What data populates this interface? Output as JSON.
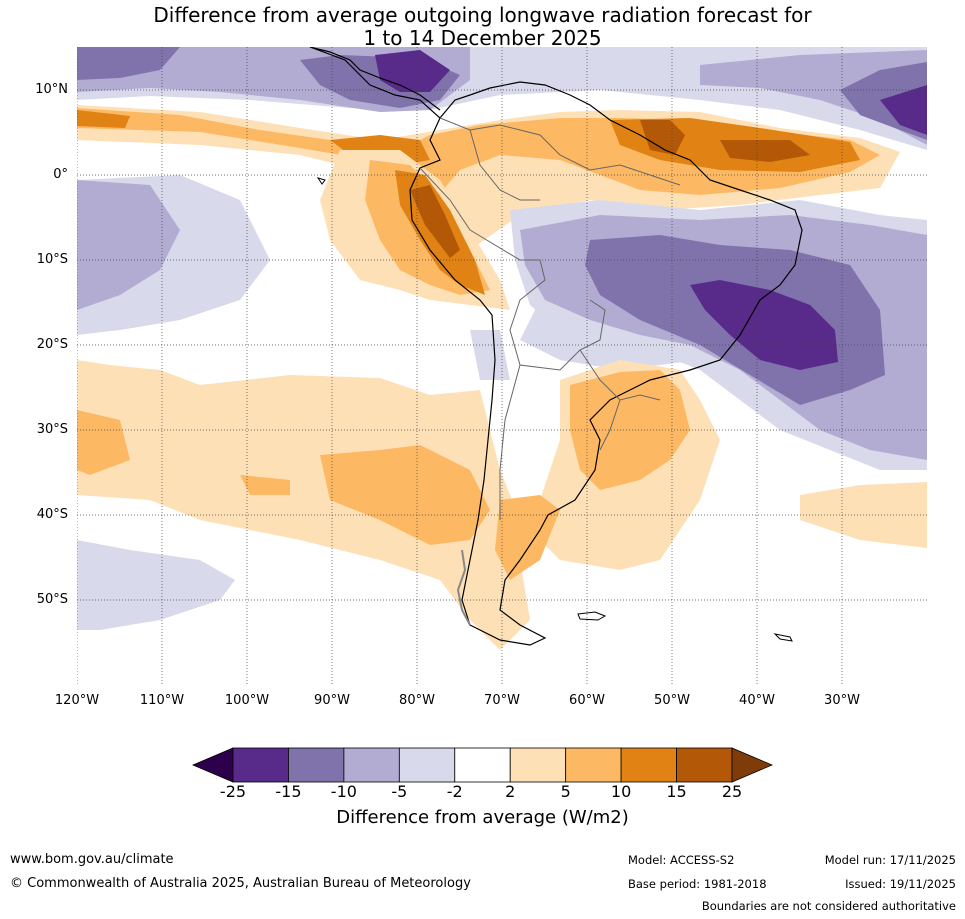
{
  "title_line1": "Difference from average outgoing longwave radiation forecast for",
  "title_line2": "1 to 14 December 2025",
  "map": {
    "lat_labels": [
      "10°N",
      "0°",
      "10°S",
      "20°S",
      "30°S",
      "40°S",
      "50°S"
    ],
    "lon_labels": [
      "120°W",
      "110°W",
      "100°W",
      "90°W",
      "80°W",
      "70°W",
      "60°W",
      "50°W",
      "40°W",
      "30°W"
    ]
  },
  "colorbar": {
    "ticks": [
      "-25",
      "-15",
      "-10",
      "-5",
      "-2",
      "2",
      "5",
      "10",
      "15",
      "25"
    ],
    "colors": [
      "#582b8b",
      "#8073ac",
      "#b2abd2",
      "#d8daeb",
      "#ffffff",
      "#fee0b6",
      "#fdb863",
      "#e08214",
      "#b35806"
    ],
    "under_color": "#2d004b",
    "over_color": "#7f3b08",
    "label": "Difference from average (W/m2)"
  },
  "footer": {
    "website": "www.bom.gov.au/climate",
    "copyright": "© Commonwealth of Australia 2025, Australian Bureau of Meteorology",
    "model": "Model: ACCESS-S2",
    "base_period": "Base period: 1981-2018",
    "model_run": "Model run: 17/11/2025",
    "issued": "Issued: 19/11/2025",
    "disclaimer": "Boundaries are not considered authoritative"
  }
}
